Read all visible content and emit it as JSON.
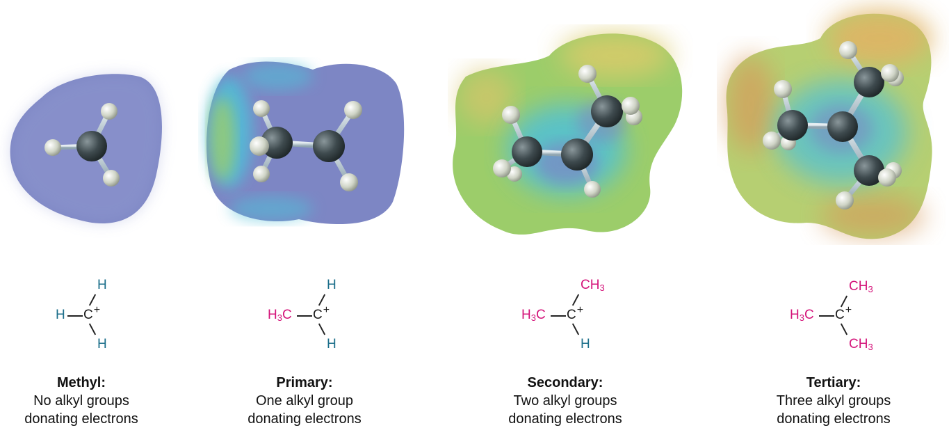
{
  "colors": {
    "blue_surface": "#7d86c4",
    "teal_region": "#4fc0d8",
    "green_region": "#9ccd6a",
    "yellow_region": "#dccb6a",
    "orange_region": "#d79a5a",
    "carbon_atom": "#3e4a4e",
    "hydrogen_atom": "#d8dccf",
    "h_label": "#1b6e8a",
    "alkyl_label": "#d4147a"
  },
  "panels": [
    {
      "id": "methyl",
      "formula": {
        "left": "H",
        "center": "C",
        "charge": "+",
        "top": "H",
        "bottom": "H"
      },
      "caption": {
        "title": "Methyl:",
        "line1": "No alkyl groups",
        "line2": "donating electrons"
      }
    },
    {
      "id": "primary",
      "formula": {
        "left_a": "H",
        "left_sub": "3",
        "left_b": "C",
        "center": "C",
        "charge": "+",
        "top": "H",
        "bottom": "H"
      },
      "caption": {
        "title": "Primary:",
        "line1": "One alkyl group",
        "line2": "donating electrons"
      }
    },
    {
      "id": "secondary",
      "formula": {
        "left_a": "H",
        "left_sub": "3",
        "left_b": "C",
        "center": "C",
        "charge": "+",
        "top_a": "CH",
        "top_sub": "3",
        "bottom": "H"
      },
      "caption": {
        "title": "Secondary:",
        "line1": "Two alkyl groups",
        "line2": "donating electrons"
      }
    },
    {
      "id": "tertiary",
      "formula": {
        "left_a": "H",
        "left_sub": "3",
        "left_b": "C",
        "center": "C",
        "charge": "+",
        "top_a": "CH",
        "top_sub": "3",
        "bottom_a": "CH",
        "bottom_sub": "3"
      },
      "caption": {
        "title": "Tertiary:",
        "line1": "Three alkyl groups",
        "line2": "donating electrons"
      }
    }
  ]
}
